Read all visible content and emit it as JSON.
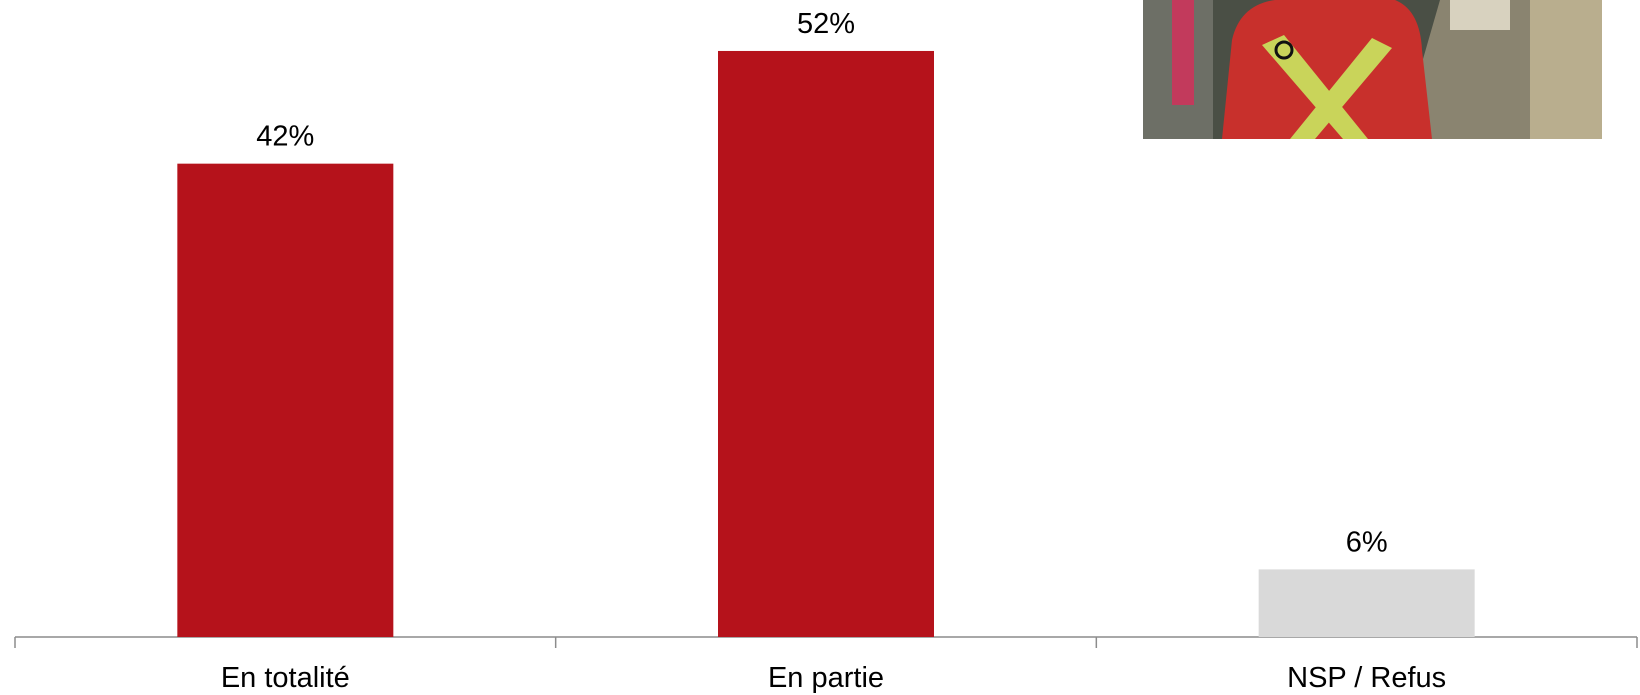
{
  "chart_data": {
    "type": "bar",
    "categories": [
      "En totalité",
      "En partie",
      "NSP / Refus"
    ],
    "values": [
      42,
      52,
      6
    ],
    "value_labels": [
      "42%",
      "52%",
      "6%"
    ],
    "colors": [
      "#b5121b",
      "#b5121b",
      "#d9d9d9"
    ]
  }
}
